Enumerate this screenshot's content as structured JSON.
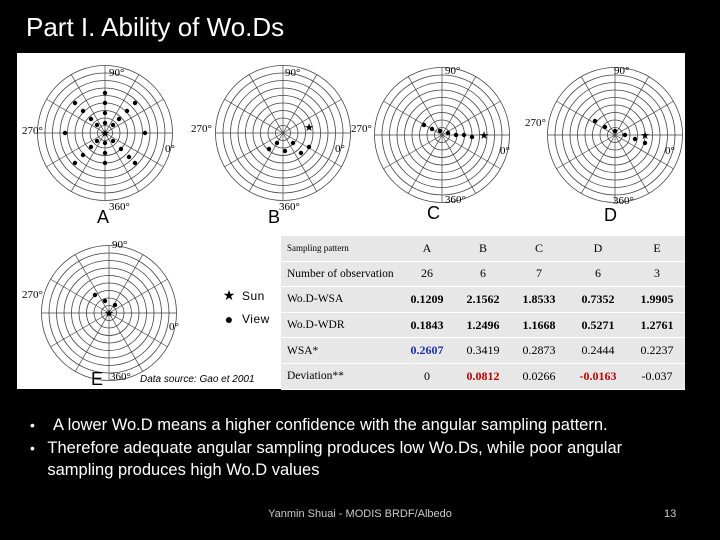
{
  "slide": {
    "title": "Part I. Ability of Wo.Ds",
    "author": "Yanmin Shuai - MODIS BRDF/Albedo",
    "page_number": "13"
  },
  "figure": {
    "plots": [
      {
        "label": "A",
        "deg_90": "90°",
        "deg_270": "270°",
        "deg_0": "0°",
        "deg_360": "360°"
      },
      {
        "label": "B",
        "deg_90": "90°",
        "deg_270": "270°",
        "deg_0": "0°",
        "deg_360": "360°"
      },
      {
        "label": "C",
        "deg_90": "90°",
        "deg_270": "270°",
        "deg_0": "0°",
        "deg_360": "360°"
      },
      {
        "label": "D",
        "deg_90": "90°",
        "deg_270": "270°",
        "deg_0": "0°",
        "deg_360": "360°"
      },
      {
        "label": "E",
        "deg_90": "90°",
        "deg_270": "270°",
        "deg_0": "0°",
        "deg_360": "360°"
      }
    ],
    "legend": {
      "sun_label": "Sun",
      "view_label": "View",
      "sun_icon": "star-icon",
      "view_icon": "dot-icon"
    },
    "source": "Data source: Gao et 2001"
  },
  "table": {
    "header": [
      "Sampling pattern",
      "A",
      "B",
      "C",
      "D",
      "E"
    ],
    "rows": [
      {
        "cells": [
          "Number of observation",
          "26",
          "6",
          "7",
          "6",
          "3"
        ]
      },
      {
        "cells": [
          "Wo.D-WSA",
          "0.1209",
          "2.1562",
          "1.8533",
          "0.7352",
          "1.9905"
        ]
      },
      {
        "cells": [
          "Wo.D-WDR",
          "0.1843",
          "1.2496",
          "1.1668",
          "0.5271",
          "1.2761"
        ]
      },
      {
        "cells": [
          "WSA*",
          "0.2607",
          "0.3419",
          "0.2873",
          "0.2444",
          "0.2237"
        ]
      },
      {
        "cells": [
          "Deviation**",
          "0",
          "0.0812",
          "0.0266",
          "-0.0163",
          "-0.037"
        ]
      }
    ]
  },
  "bullets": [
    "A lower Wo.D means a higher confidence with the angular sampling pattern.",
    "Therefore adequate angular sampling produces low Wo.Ds, while poor angular sampling produces high Wo.D values"
  ],
  "colors": {
    "background": "#000000",
    "figure_bg": "#ffffff",
    "table_bg": "#e7e7e7",
    "highlight_blue": "#1f2ea8",
    "highlight_red": "#c00000"
  }
}
